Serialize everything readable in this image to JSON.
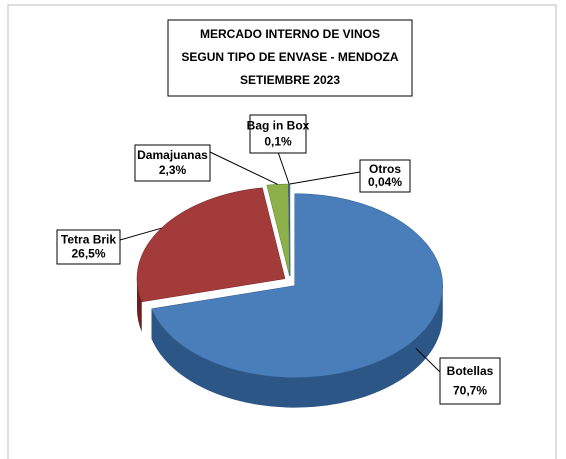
{
  "chart_data": {
    "type": "pie",
    "title": [
      "MERCADO INTERNO DE VINOS",
      "SEGUN TIPO DE ENVASE - MENDOZA",
      "SETIEMBRE 2023"
    ],
    "categories": [
      "Botellas",
      "Tetra Brik",
      "Damajuanas",
      "Bag in Box",
      "Otros"
    ],
    "values": [
      70.7,
      26.5,
      2.3,
      0.1,
      0.04
    ],
    "value_labels": [
      "70,7%",
      "26,5%",
      "2,3%",
      "0,1%",
      "0,04%"
    ],
    "colors": [
      "#4a7ebb",
      "#a33b3b",
      "#8db04b",
      "#7b5fa3",
      "#3fa4c4"
    ],
    "side_colors": [
      "#2c5686",
      "#6b1f1f",
      "#5c7a2a",
      "#4f3a70",
      "#257a96"
    ]
  }
}
